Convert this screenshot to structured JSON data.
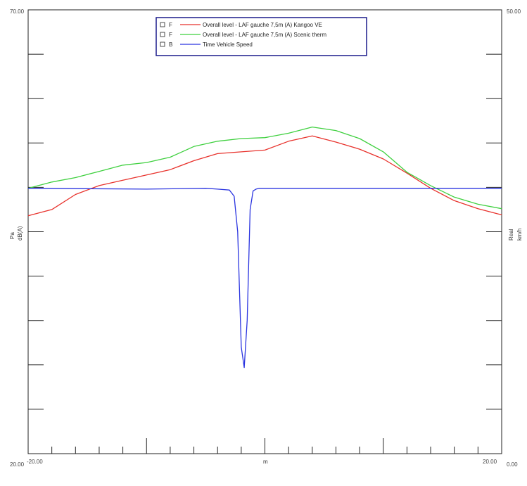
{
  "chart_data": {
    "type": "line",
    "xlim": [
      -20,
      20
    ],
    "x_ticks": [
      "-20.00",
      "20.00"
    ],
    "xlabel": "m",
    "ylim_left": [
      20,
      70
    ],
    "y_left_ticks": [
      "70.00",
      "20.00"
    ],
    "ylabel_left": [
      "Pa",
      "dB(A)"
    ],
    "ylim_right": [
      0,
      50
    ],
    "y_right_ticks": [
      "50.00",
      "0.00"
    ],
    "ylabel_right": [
      "Real",
      "km/h"
    ],
    "grid": false,
    "legend_position": "top-center",
    "legend": [
      {
        "flag": "F",
        "label": "Overall level - LAF gauche 7,5m (A)  Kangoo VE",
        "color": "#e8322c"
      },
      {
        "flag": "F",
        "label": "Overall level - LAF gauche 7,5m (A)  Scenic therm",
        "color": "#3fd03f"
      },
      {
        "flag": "B",
        "label": "Time Vehicle Speed",
        "color": "#2b35e0"
      }
    ],
    "series": [
      {
        "name": "Overall level - LAF gauche 7,5m (A)  Kangoo VE",
        "axis": "left",
        "color": "#e8322c",
        "x": [
          -20,
          -18,
          -16,
          -14,
          -12,
          -10,
          -8,
          -6,
          -4,
          -2,
          0,
          2,
          4,
          6,
          8,
          10,
          12,
          14,
          16,
          18,
          20
        ],
        "values": [
          46.8,
          47.5,
          49.2,
          50.2,
          50.8,
          51.4,
          52.0,
          53.0,
          53.8,
          54.0,
          54.2,
          55.2,
          55.8,
          55.1,
          54.3,
          53.2,
          51.6,
          49.9,
          48.5,
          47.6,
          46.9
        ]
      },
      {
        "name": "Overall level - LAF gauche 7,5m (A)  Scenic therm",
        "axis": "left",
        "color": "#3fd03f",
        "x": [
          -20,
          -18,
          -16,
          -14,
          -12,
          -10,
          -8,
          -6,
          -4,
          -2,
          0,
          2,
          4,
          6,
          8,
          10,
          12,
          14,
          16,
          18,
          20
        ],
        "values": [
          49.9,
          50.6,
          51.1,
          51.8,
          52.5,
          52.8,
          53.4,
          54.6,
          55.2,
          55.5,
          55.6,
          56.1,
          56.8,
          56.4,
          55.5,
          54.0,
          51.7,
          50.2,
          48.9,
          48.1,
          47.6
        ]
      },
      {
        "name": "Time Vehicle Speed",
        "axis": "right",
        "color": "#2b35e0",
        "x": [
          -20,
          -10,
          -5,
          -4,
          -3,
          -2.6,
          -2.3,
          -2.0,
          -1.75,
          -1.5,
          -1.25,
          -1.0,
          -0.75,
          -0.5,
          0,
          5,
          10,
          20
        ],
        "values": [
          29.9,
          29.8,
          29.9,
          29.8,
          29.7,
          29.0,
          25.0,
          12.0,
          9.7,
          15.0,
          27.5,
          29.6,
          29.8,
          29.9,
          29.9,
          29.9,
          29.9,
          29.9
        ]
      }
    ]
  }
}
